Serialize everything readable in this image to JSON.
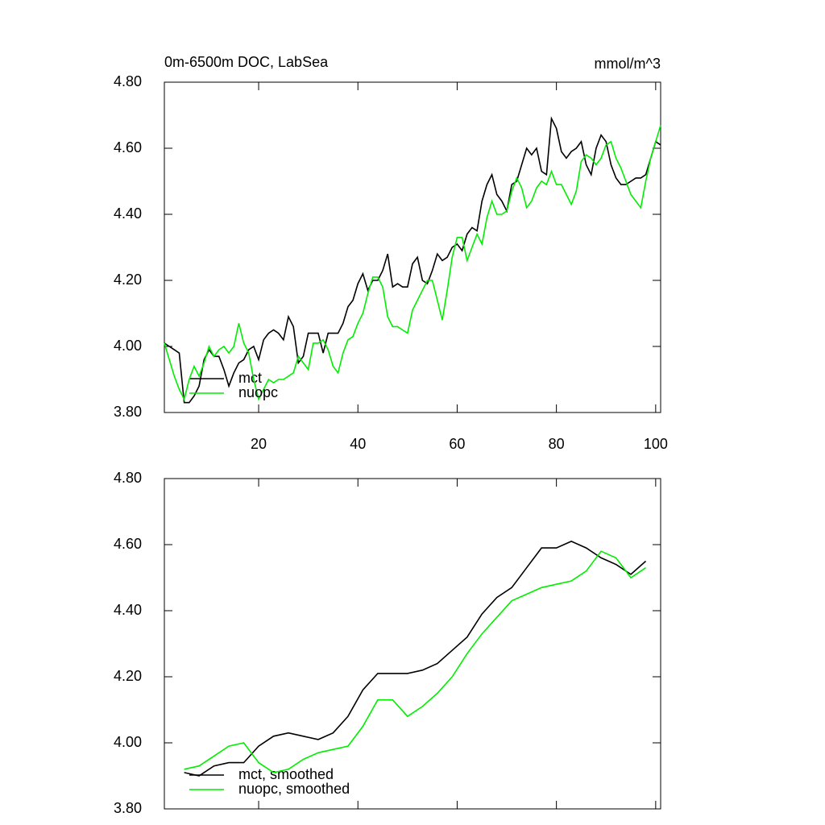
{
  "chart_data": [
    {
      "type": "line",
      "title": "0m-6500m DOC, LabSea",
      "right_title": "mmol/m^3",
      "x": [
        1,
        2,
        3,
        4,
        5,
        6,
        7,
        8,
        9,
        10,
        11,
        12,
        13,
        14,
        15,
        16,
        17,
        18,
        19,
        20,
        21,
        22,
        23,
        24,
        25,
        26,
        27,
        28,
        29,
        30,
        31,
        32,
        33,
        34,
        35,
        36,
        37,
        38,
        39,
        40,
        41,
        42,
        43,
        44,
        45,
        46,
        47,
        48,
        49,
        50,
        51,
        52,
        53,
        54,
        55,
        56,
        57,
        58,
        59,
        60,
        61,
        62,
        63,
        64,
        65,
        66,
        67,
        68,
        69,
        70,
        71,
        72,
        73,
        74,
        75,
        76,
        77,
        78,
        79,
        80,
        81,
        82,
        83,
        84,
        85,
        86,
        87,
        88,
        89,
        90,
        91,
        92,
        93,
        94,
        95,
        96,
        97,
        98,
        99,
        100,
        101
      ],
      "series": [
        {
          "name": "mct",
          "color": "#000000",
          "values": [
            4.01,
            4.0,
            3.99,
            3.98,
            3.83,
            3.83,
            3.85,
            3.88,
            3.96,
            3.99,
            3.97,
            3.97,
            3.93,
            3.88,
            3.92,
            3.95,
            3.96,
            3.99,
            4.0,
            3.96,
            4.02,
            4.04,
            4.05,
            4.04,
            4.02,
            4.09,
            4.06,
            3.95,
            3.97,
            4.04,
            4.04,
            4.04,
            3.98,
            4.04,
            4.04,
            4.04,
            4.07,
            4.12,
            4.14,
            4.19,
            4.22,
            4.17,
            4.2,
            4.2,
            4.23,
            4.28,
            4.18,
            4.19,
            4.18,
            4.18,
            4.25,
            4.27,
            4.2,
            4.19,
            4.23,
            4.28,
            4.26,
            4.27,
            4.3,
            4.31,
            4.29,
            4.34,
            4.36,
            4.35,
            4.44,
            4.49,
            4.52,
            4.46,
            4.44,
            4.41,
            4.49,
            4.5,
            4.55,
            4.6,
            4.58,
            4.6,
            4.53,
            4.52,
            4.69,
            4.66,
            4.59,
            4.57,
            4.59,
            4.6,
            4.62,
            4.55,
            4.52,
            4.6,
            4.64,
            4.62,
            4.55,
            4.51,
            4.49,
            4.49,
            4.5,
            4.51,
            4.51,
            4.52,
            4.57,
            4.62,
            4.61
          ]
        },
        {
          "name": "nuopc",
          "color": "#00ee00",
          "values": [
            4.01,
            3.96,
            3.91,
            3.87,
            3.84,
            3.9,
            3.94,
            3.91,
            3.95,
            4.0,
            3.97,
            3.99,
            4.0,
            3.98,
            4.0,
            4.07,
            4.01,
            3.98,
            3.9,
            3.84,
            3.87,
            3.9,
            3.89,
            3.9,
            3.9,
            3.91,
            3.92,
            3.97,
            3.95,
            3.93,
            4.01,
            4.01,
            4.02,
            3.99,
            3.94,
            3.92,
            3.98,
            4.02,
            4.03,
            4.07,
            4.1,
            4.16,
            4.21,
            4.21,
            4.18,
            4.09,
            4.06,
            4.06,
            4.05,
            4.04,
            4.11,
            4.14,
            4.17,
            4.2,
            4.2,
            4.14,
            4.08,
            4.17,
            4.27,
            4.33,
            4.33,
            4.26,
            4.3,
            4.34,
            4.31,
            4.39,
            4.44,
            4.4,
            4.4,
            4.41,
            4.47,
            4.51,
            4.48,
            4.42,
            4.44,
            4.48,
            4.5,
            4.49,
            4.53,
            4.49,
            4.49,
            4.46,
            4.43,
            4.47,
            4.56,
            4.58,
            4.57,
            4.55,
            4.57,
            4.61,
            4.62,
            4.57,
            4.54,
            4.5,
            4.46,
            4.44,
            4.42,
            4.5,
            4.57,
            4.62,
            4.67
          ]
        }
      ],
      "xlim": [
        1,
        101
      ],
      "xticks": [
        20,
        40,
        60,
        80,
        100
      ],
      "ylim": [
        3.8,
        4.8
      ],
      "yticks": [
        {
          "value": 3.8,
          "label": "3.80"
        },
        {
          "value": 4.0,
          "label": "4.00"
        },
        {
          "value": 4.2,
          "label": "4.20"
        },
        {
          "value": 4.4,
          "label": "4.40"
        },
        {
          "value": 4.6,
          "label": "4.60"
        },
        {
          "value": 4.8,
          "label": "4.80"
        }
      ]
    },
    {
      "type": "line",
      "x": [
        5,
        8,
        11,
        14,
        17,
        20,
        23,
        26,
        29,
        32,
        35,
        38,
        41,
        44,
        47,
        50,
        53,
        56,
        59,
        62,
        65,
        68,
        71,
        74,
        77,
        80,
        83,
        86,
        89,
        92,
        95,
        98
      ],
      "series": [
        {
          "name": "mct, smoothed",
          "color": "#000000",
          "values": [
            3.91,
            3.9,
            3.93,
            3.94,
            3.94,
            3.99,
            4.02,
            4.03,
            4.02,
            4.01,
            4.03,
            4.08,
            4.16,
            4.21,
            4.21,
            4.21,
            4.22,
            4.24,
            4.28,
            4.32,
            4.39,
            4.44,
            4.47,
            4.53,
            4.59,
            4.59,
            4.61,
            4.59,
            4.56,
            4.54,
            4.51,
            4.55
          ]
        },
        {
          "name": "nuopc, smoothed",
          "color": "#00ee00",
          "values": [
            3.92,
            3.93,
            3.96,
            3.99,
            4.0,
            3.94,
            3.91,
            3.92,
            3.95,
            3.97,
            3.98,
            3.99,
            4.05,
            4.13,
            4.13,
            4.08,
            4.11,
            4.15,
            4.2,
            4.27,
            4.33,
            4.38,
            4.43,
            4.45,
            4.47,
            4.48,
            4.49,
            4.52,
            4.58,
            4.56,
            4.5,
            4.53
          ]
        }
      ],
      "xlim": [
        1,
        101
      ],
      "ylim": [
        3.8,
        4.8
      ],
      "yticks": [
        {
          "value": 3.8,
          "label": "3.80"
        },
        {
          "value": 4.0,
          "label": "4.00"
        },
        {
          "value": 4.2,
          "label": "4.20"
        },
        {
          "value": 4.4,
          "label": "4.40"
        },
        {
          "value": 4.6,
          "label": "4.60"
        },
        {
          "value": 4.8,
          "label": "4.80"
        }
      ]
    }
  ]
}
